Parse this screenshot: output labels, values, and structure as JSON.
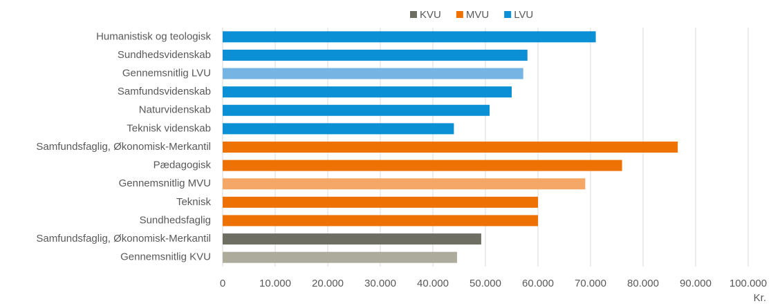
{
  "chart_data": {
    "type": "bar",
    "orientation": "horizontal",
    "legend": [
      {
        "name": "KVU",
        "color": "#6f6e62"
      },
      {
        "name": "MVU",
        "color": "#ee7203"
      },
      {
        "name": "LVU",
        "color": "#0b8fd5"
      }
    ],
    "categories": [
      "Humanistisk og teologisk",
      "Sundhedsvidenskab",
      "Gennemsnitlig LVU",
      "Samfundsvidenskab",
      "Naturvidenskab",
      "Teknisk videnskab",
      "Samfundsfaglig, Økonomisk-Merkantil",
      "Pædagogisk",
      "Gennemsnitlig MVU",
      "Teknisk",
      "Sundhedsfaglig",
      "Samfundsfaglig, Økonomisk-Merkantil",
      "Gennemsnitlig KVU"
    ],
    "values": [
      71000,
      58000,
      57200,
      55000,
      50800,
      44000,
      86600,
      76000,
      69000,
      60000,
      60000,
      49200,
      44600
    ],
    "colors": [
      "#0b8fd5",
      "#0b8fd5",
      "#76b5e3",
      "#0b8fd5",
      "#0b8fd5",
      "#0b8fd5",
      "#ee7203",
      "#ee7203",
      "#f4a766",
      "#ee7203",
      "#ee7203",
      "#6f6e62",
      "#adab9c"
    ],
    "xlim": [
      0,
      100000
    ],
    "xticks": [
      0,
      {
        "value": 10000,
        "label": "10.000"
      },
      {
        "value": 20000,
        "label": "20.000"
      },
      {
        "value": 30000,
        "label": "30.000"
      },
      {
        "value": 40000,
        "label": "40.000"
      },
      {
        "value": 50000,
        "label": "50.000"
      },
      {
        "value": 60000,
        "label": "60.000"
      },
      {
        "value": 70000,
        "label": "70.000"
      },
      {
        "value": 80000,
        "label": "80.000"
      },
      {
        "value": 90000,
        "label": "90.000"
      },
      {
        "value": 100000,
        "label": "100.000"
      }
    ],
    "x_label": "Kr.",
    "grid": true
  }
}
